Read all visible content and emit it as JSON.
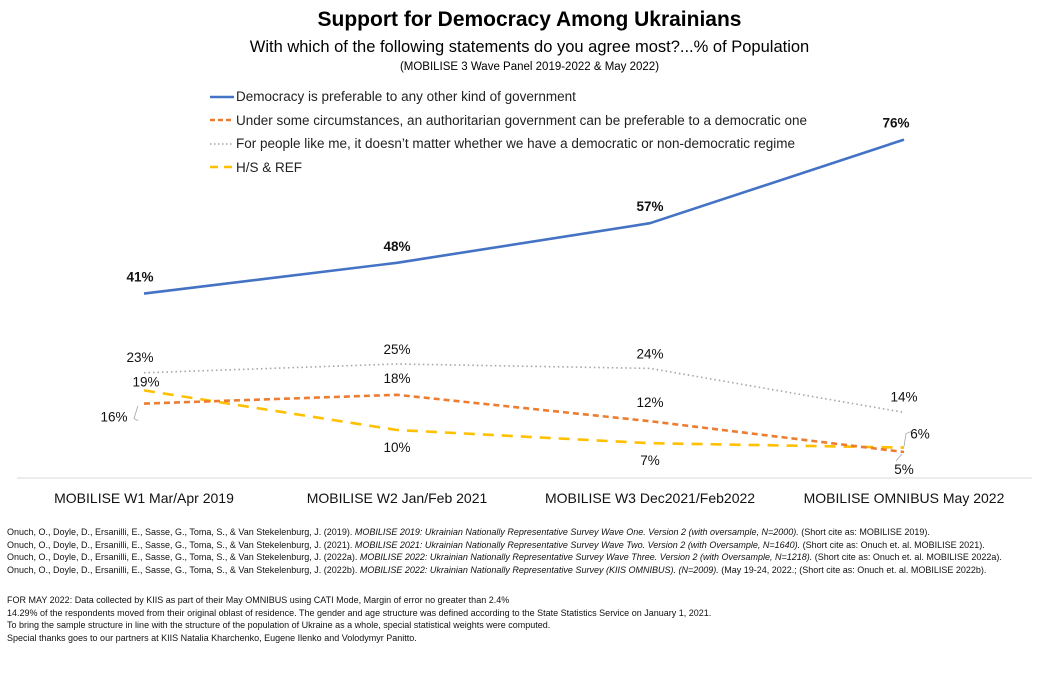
{
  "chart_data": {
    "type": "line",
    "title": "Support for Democracy Among Ukrainians",
    "subtitle": "With which of the following statements do you agree most?...% of Population",
    "note": "(MOBILISE 3 Wave Panel 2019-2022 & May 2022)",
    "xlabel": "",
    "ylabel": "",
    "ylim": [
      0,
      80
    ],
    "grid": false,
    "legend_position": "top-left",
    "categories": [
      "MOBILISE  W1 Mar/Apr 2019",
      "MOBILISE  W2 Jan/Feb 2021",
      "MOBILISE  W3 Dec2021/Feb2022",
      "MOBILISE OMNIBUS May 2022"
    ],
    "series": [
      {
        "name": "Democracy is preferable to any other kind of government",
        "color": "#4472C4",
        "style": "solid",
        "bold_labels": true,
        "values": [
          41,
          48,
          57,
          76
        ],
        "labels": [
          "41%",
          "48%",
          "57%",
          "76%"
        ]
      },
      {
        "name": "Under some circumstances, an authoritarian government can be preferable to a democratic one",
        "color": "#ED7D31",
        "style": "dash",
        "bold_labels": false,
        "values": [
          16,
          18,
          12,
          5
        ],
        "labels": [
          "16%",
          "18%",
          "12%",
          "5%"
        ]
      },
      {
        "name": "For people like me, it doesn’t matter whether we have a democratic or non-democratic regime",
        "color": "#A5A5A5",
        "style": "dot",
        "bold_labels": false,
        "values": [
          23,
          25,
          24,
          14
        ],
        "labels": [
          "23%",
          "25%",
          "24%",
          "14%"
        ]
      },
      {
        "name": "H/S & REF",
        "color": "#FFC000",
        "style": "longdash",
        "bold_labels": false,
        "values": [
          19,
          10,
          7,
          6
        ],
        "labels": [
          "19%",
          "10%",
          "7%",
          "6%"
        ]
      }
    ]
  },
  "citations": [
    {
      "authors": "Onuch, O., Doyle, D., Ersanilli, E., Sasse, G., Toma, S., & Van Stekelenburg, J. (2019). ",
      "title": "MOBILISE 2019: Ukrainian Nationally Representative Survey Wave One. Version 2 (with oversample, N=2000).",
      "rest": " (Short cite as: MOBILISE 2019)."
    },
    {
      "authors": "Onuch, O., Doyle, D., Ersanilli, E., Sasse, G., Toma, S., & Van Stekelenburg, J. (2021). ",
      "title": "MOBILISE 2021: Ukrainian Nationally Representative Survey Wave Two. Version 2 (with Oversample, N=1640).",
      "rest": " (Short cite as: Onuch et. al. MOBILISE 2021)."
    },
    {
      "authors": "Onuch, O., Doyle, D., Ersanilli, E., Sasse, G., Toma, S., & Van Stekelenburg, J. (2022a). ",
      "title": "MOBILISE 2022: Ukrainian Nationally Representative Survey Wave Three. Version 2 (with Oversample, N=1218).",
      "rest": " (Short cite as: Onuch et. al. MOBILISE 2022a)."
    },
    {
      "authors": "Onuch, O., Doyle, D., Ersanilli, E., Sasse, G., Toma, S., & Van Stekelenburg, J. (2022b). ",
      "title": "MOBILISE 2022: Ukrainian Nationally Representative Survey (KIIS OMNIBUS).   (N=2009).",
      "rest": " (May 19-24,  2022.; (Short cite as: Onuch et. al. MOBILISE 2022b)."
    }
  ],
  "footnotes": [
    "FOR MAY 2022: Data collected by KIIS as part of their May OMNIBUS using CATI Mode, Margin of error no greater than 2.4%",
    "14.29% of the respondents  moved from their original oblast of residence. The gender and age structure was defined according to the State Statistics Service on January 1, 2021.",
    "To bring the sample structure in line with the structure of the population of Ukraine as a whole, special statistical weights were computed.",
    "Special thanks goes to our partners at KIIS Natalia Kharchenko,  Eugene Ilenko and Volodymyr  Panitto."
  ]
}
